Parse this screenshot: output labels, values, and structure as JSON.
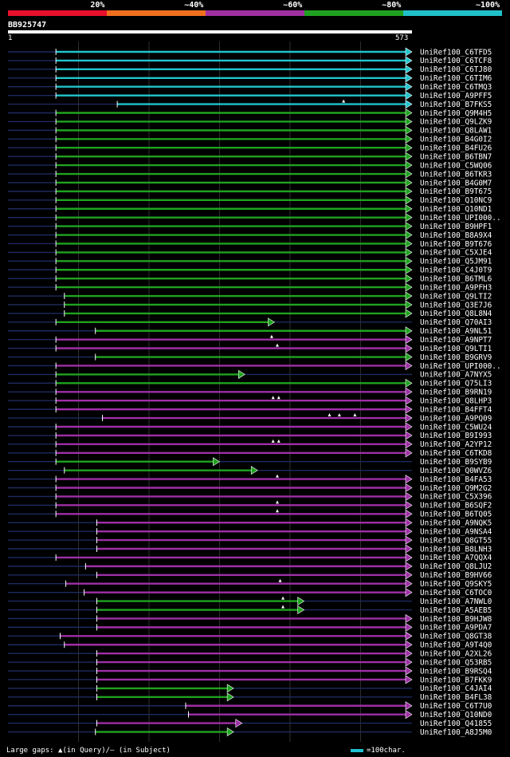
{
  "legend": [
    {
      "label": "20%",
      "color": "#e8102c"
    },
    {
      "label": "~40%",
      "color": "#f07020"
    },
    {
      "label": "~60%",
      "color": "#a030a0"
    },
    {
      "label": "~80%",
      "color": "#20a020"
    },
    {
      "label": "~100%",
      "color": "#20c0c8"
    }
  ],
  "query": {
    "name": "BB925747",
    "start": "1",
    "end": "573",
    "length": 573
  },
  "footer": {
    "left": "Large gaps: ▲(in Query)/– (in Subject)",
    "right": "=100char."
  },
  "colors": {
    "cyan": "#21c4cc",
    "green": "#1fa31f",
    "purple": "#9e2fa6",
    "gray": "#1e2a60",
    "grid": "#303030"
  },
  "hits": [
    {
      "label": "UniRef100_C6TFD5",
      "c": "cyan",
      "s": 68,
      "e": 573,
      "ar": 1,
      "g": []
    },
    {
      "label": "UniRef100_C6TCF8",
      "c": "cyan",
      "s": 68,
      "e": 573,
      "ar": 1,
      "g": []
    },
    {
      "label": "UniRef100_C6TJ80",
      "c": "cyan",
      "s": 68,
      "e": 573,
      "ar": 1,
      "g": []
    },
    {
      "label": "UniRef100_C6TIM6",
      "c": "cyan",
      "s": 68,
      "e": 573,
      "ar": 1,
      "g": []
    },
    {
      "label": "UniRef100_C6TMQ3",
      "c": "cyan",
      "s": 68,
      "e": 573,
      "ar": 1,
      "g": []
    },
    {
      "label": "UniRef100_A9PFF5",
      "c": "cyan",
      "s": 68,
      "e": 573,
      "ar": 1,
      "g": []
    },
    {
      "label": "UniRef100_B7FKS5",
      "c": "cyan",
      "s": 155,
      "e": 573,
      "ar": 1,
      "g": [
        476
      ]
    },
    {
      "label": "UniRef100_Q9M4H5",
      "c": "green",
      "s": 68,
      "e": 573,
      "ar": 1,
      "g": []
    },
    {
      "label": "UniRef100_Q9LZK9",
      "c": "green",
      "s": 68,
      "e": 573,
      "ar": 1,
      "g": []
    },
    {
      "label": "UniRef100_Q8LAW1",
      "c": "green",
      "s": 68,
      "e": 573,
      "ar": 1,
      "g": []
    },
    {
      "label": "UniRef100_B4G0I2",
      "c": "green",
      "s": 68,
      "e": 573,
      "ar": 1,
      "g": []
    },
    {
      "label": "UniRef100_B4FU26",
      "c": "green",
      "s": 68,
      "e": 573,
      "ar": 1,
      "g": []
    },
    {
      "label": "UniRef100_B6TBN7",
      "c": "green",
      "s": 68,
      "e": 573,
      "ar": 1,
      "g": []
    },
    {
      "label": "UniRef100_C5WQ06",
      "c": "green",
      "s": 68,
      "e": 573,
      "ar": 1,
      "g": []
    },
    {
      "label": "UniRef100_B6TKR3",
      "c": "green",
      "s": 68,
      "e": 573,
      "ar": 1,
      "g": []
    },
    {
      "label": "UniRef100_B4G0M7",
      "c": "green",
      "s": 68,
      "e": 573,
      "ar": 1,
      "g": []
    },
    {
      "label": "UniRef100_B9T675",
      "c": "green",
      "s": 68,
      "e": 573,
      "ar": 1,
      "g": []
    },
    {
      "label": "UniRef100_Q10NC9",
      "c": "green",
      "s": 68,
      "e": 573,
      "ar": 1,
      "g": []
    },
    {
      "label": "UniRef100_Q10ND1",
      "c": "green",
      "s": 68,
      "e": 573,
      "ar": 1,
      "g": []
    },
    {
      "label": "UniRef100_UPI000..",
      "c": "green",
      "s": 68,
      "e": 573,
      "ar": 1,
      "g": []
    },
    {
      "label": "UniRef100_B9HPF1",
      "c": "green",
      "s": 68,
      "e": 573,
      "ar": 1,
      "g": []
    },
    {
      "label": "UniRef100_B8A9X4",
      "c": "green",
      "s": 68,
      "e": 573,
      "ar": 1,
      "g": []
    },
    {
      "label": "UniRef100_B9T676",
      "c": "green",
      "s": 68,
      "e": 573,
      "ar": 1,
      "g": []
    },
    {
      "label": "UniRef100_C5XJE4",
      "c": "green",
      "s": 68,
      "e": 573,
      "ar": 1,
      "g": []
    },
    {
      "label": "UniRef100_Q5JM91",
      "c": "green",
      "s": 68,
      "e": 573,
      "ar": 1,
      "g": []
    },
    {
      "label": "UniRef100_C4J0T9",
      "c": "green",
      "s": 68,
      "e": 573,
      "ar": 1,
      "g": []
    },
    {
      "label": "UniRef100_B6TML6",
      "c": "green",
      "s": 68,
      "e": 573,
      "ar": 1,
      "g": []
    },
    {
      "label": "UniRef100_A9PFH3",
      "c": "green",
      "s": 68,
      "e": 573,
      "ar": 1,
      "g": []
    },
    {
      "label": "UniRef100_Q9LTI2",
      "c": "green",
      "s": 80,
      "e": 573,
      "ar": 1,
      "g": []
    },
    {
      "label": "UniRef100_Q3E7J6",
      "c": "green",
      "s": 80,
      "e": 573,
      "ar": 1,
      "g": []
    },
    {
      "label": "UniRef100_Q8L8N4",
      "c": "green",
      "s": 80,
      "e": 573,
      "ar": 1,
      "g": []
    },
    {
      "label": "UniRef100_Q70AI3",
      "c": "green",
      "s": 68,
      "e": 378,
      "ar": 1,
      "g": []
    },
    {
      "label": "UniRef100_A9NL51",
      "c": "green",
      "s": 124,
      "e": 573,
      "ar": 1,
      "g": []
    },
    {
      "label": "UniRef100_A9NPT7",
      "c": "purple",
      "s": 68,
      "e": 573,
      "ar": 1,
      "g": [
        374
      ]
    },
    {
      "label": "UniRef100_Q9LTI1",
      "c": "purple",
      "s": 68,
      "e": 573,
      "ar": 1,
      "g": [
        382
      ]
    },
    {
      "label": "UniRef100_B9GRV9",
      "c": "green",
      "s": 124,
      "e": 573,
      "ar": 1,
      "g": []
    },
    {
      "label": "UniRef100_UPI000..",
      "c": "purple",
      "s": 68,
      "e": 573,
      "ar": 1,
      "g": []
    },
    {
      "label": "UniRef100_A7NYX5",
      "c": "green",
      "s": 68,
      "e": 336,
      "ar": 1,
      "g": []
    },
    {
      "label": "UniRef100_Q75LI3",
      "c": "green",
      "s": 68,
      "e": 573,
      "ar": 1,
      "g": []
    },
    {
      "label": "UniRef100_B9RN19",
      "c": "purple",
      "s": 68,
      "e": 573,
      "ar": 1,
      "g": []
    },
    {
      "label": "UniRef100_Q8LHP3",
      "c": "purple",
      "s": 68,
      "e": 573,
      "ar": 1,
      "g": [
        376,
        384
      ]
    },
    {
      "label": "UniRef100_B4FFT4",
      "c": "purple",
      "s": 68,
      "e": 573,
      "ar": 1,
      "g": []
    },
    {
      "label": "UniRef100_A9PQ09",
      "c": "purple",
      "s": 134,
      "e": 573,
      "ar": 1,
      "g": [
        456,
        470,
        492
      ]
    },
    {
      "label": "UniRef100_C5WU24",
      "c": "purple",
      "s": 68,
      "e": 573,
      "ar": 1,
      "g": []
    },
    {
      "label": "UniRef100_B9I993",
      "c": "purple",
      "s": 68,
      "e": 573,
      "ar": 1,
      "g": []
    },
    {
      "label": "UniRef100_A2YP12",
      "c": "purple",
      "s": 68,
      "e": 573,
      "ar": 1,
      "g": [
        376,
        384
      ]
    },
    {
      "label": "UniRef100_C6TKD8",
      "c": "purple",
      "s": 68,
      "e": 573,
      "ar": 1,
      "g": []
    },
    {
      "label": "UniRef100_B9SYB9",
      "c": "green",
      "s": 68,
      "e": 300,
      "ar": 1,
      "g": []
    },
    {
      "label": "UniRef100_Q0WVZ6",
      "c": "green",
      "s": 80,
      "e": 354,
      "ar": 1,
      "g": []
    },
    {
      "label": "UniRef100_B4FA53",
      "c": "purple",
      "s": 68,
      "e": 573,
      "ar": 1,
      "g": [
        382
      ]
    },
    {
      "label": "UniRef100_Q9M2G2",
      "c": "purple",
      "s": 68,
      "e": 573,
      "ar": 1,
      "g": []
    },
    {
      "label": "UniRef100_C5X396",
      "c": "purple",
      "s": 68,
      "e": 573,
      "ar": 1,
      "g": []
    },
    {
      "label": "UniRef100_B6SQF2",
      "c": "purple",
      "s": 68,
      "e": 573,
      "ar": 1,
      "g": [
        382
      ]
    },
    {
      "label": "UniRef100_B6TQ05",
      "c": "purple",
      "s": 68,
      "e": 573,
      "ar": 1,
      "g": [
        382
      ]
    },
    {
      "label": "UniRef100_A9NQK5",
      "c": "purple",
      "s": 126,
      "e": 573,
      "ar": 1,
      "g": []
    },
    {
      "label": "UniRef100_A9NSA4",
      "c": "purple",
      "s": 126,
      "e": 573,
      "ar": 1,
      "g": []
    },
    {
      "label": "UniRef100_Q8GT55",
      "c": "purple",
      "s": 126,
      "e": 573,
      "ar": 1,
      "g": []
    },
    {
      "label": "UniRef100_B8LNH3",
      "c": "purple",
      "s": 126,
      "e": 573,
      "ar": 1,
      "g": []
    },
    {
      "label": "UniRef100_A7QQX4",
      "c": "purple",
      "s": 68,
      "e": 573,
      "ar": 1,
      "g": []
    },
    {
      "label": "UniRef100_Q8LJU2",
      "c": "purple",
      "s": 110,
      "e": 573,
      "ar": 1,
      "g": []
    },
    {
      "label": "UniRef100_B9HV66",
      "c": "purple",
      "s": 126,
      "e": 573,
      "ar": 1,
      "g": []
    },
    {
      "label": "UniRef100_Q9SKY5",
      "c": "purple",
      "s": 82,
      "e": 573,
      "ar": 1,
      "g": [
        386
      ]
    },
    {
      "label": "UniRef100_C6TOC0",
      "c": "purple",
      "s": 108,
      "e": 573,
      "ar": 1,
      "g": []
    },
    {
      "label": "UniRef100_A7NWL0",
      "c": "green",
      "s": 126,
      "e": 420,
      "ar": 1,
      "g": [
        390
      ]
    },
    {
      "label": "UniRef100_A5AEB5",
      "c": "green",
      "s": 126,
      "e": 420,
      "ar": 1,
      "g": [
        390
      ]
    },
    {
      "label": "UniRef100_B9HJW8",
      "c": "purple",
      "s": 126,
      "e": 573,
      "ar": 1,
      "g": []
    },
    {
      "label": "UniRef100_A9PDA7",
      "c": "purple",
      "s": 126,
      "e": 573,
      "ar": 1,
      "g": []
    },
    {
      "label": "UniRef100_Q8GT38",
      "c": "purple",
      "s": 74,
      "e": 573,
      "ar": 1,
      "g": []
    },
    {
      "label": "UniRef100_A9T4Q0",
      "c": "purple",
      "s": 80,
      "e": 573,
      "ar": 1,
      "g": []
    },
    {
      "label": "UniRef100_A2XL26",
      "c": "purple",
      "s": 126,
      "e": 573,
      "ar": 1,
      "g": []
    },
    {
      "label": "UniRef100_Q53RB5",
      "c": "purple",
      "s": 126,
      "e": 573,
      "ar": 1,
      "g": []
    },
    {
      "label": "UniRef100_B9RSQ4",
      "c": "purple",
      "s": 126,
      "e": 573,
      "ar": 1,
      "g": []
    },
    {
      "label": "UniRef100_B7FKK9",
      "c": "purple",
      "s": 126,
      "e": 573,
      "ar": 1,
      "g": []
    },
    {
      "label": "UniRef100_C4JAI4",
      "c": "green",
      "s": 126,
      "e": 320,
      "ar": 1,
      "g": []
    },
    {
      "label": "UniRef100_B4FL38",
      "c": "green",
      "s": 126,
      "e": 320,
      "ar": 1,
      "g": []
    },
    {
      "label": "UniRef100_C6T7U0",
      "c": "purple",
      "s": 252,
      "e": 573,
      "ar": 1,
      "g": []
    },
    {
      "label": "UniRef100_Q10ND0",
      "c": "purple",
      "s": 256,
      "e": 573,
      "ar": 1,
      "g": []
    },
    {
      "label": "UniRef100_Q41855",
      "c": "purple",
      "s": 126,
      "e": 332,
      "ar": 1,
      "g": []
    },
    {
      "label": "UniRef100_A8J5M0",
      "c": "green",
      "s": 124,
      "e": 320,
      "ar": 1,
      "g": []
    }
  ]
}
